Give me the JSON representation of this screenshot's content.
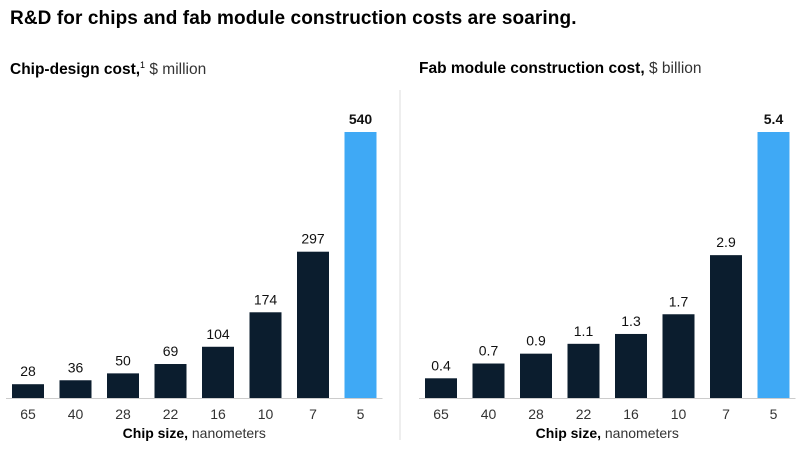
{
  "title": "R&D for chips and fab module construction costs are soaring.",
  "colors": {
    "bar": "#0b1d2e",
    "highlight": "#3fa9f5"
  },
  "chart_data": [
    {
      "type": "bar",
      "title": "Chip-design cost,",
      "footnote_marker": "1",
      "unit": "$ million",
      "xlabel_bold": "Chip size,",
      "xlabel_unit": "nanometers",
      "categories": [
        "65",
        "40",
        "28",
        "22",
        "16",
        "10",
        "7",
        "5"
      ],
      "values": [
        28,
        36,
        50,
        69,
        104,
        174,
        297,
        540
      ],
      "labels": [
        "28",
        "36",
        "50",
        "69",
        "104",
        "174",
        "297",
        "540"
      ],
      "highlight_index": 7,
      "ylim": [
        0,
        540
      ]
    },
    {
      "type": "bar",
      "title": "Fab module construction cost,",
      "unit": "$ billion",
      "xlabel_bold": "Chip size,",
      "xlabel_unit": "nanometers",
      "categories": [
        "65",
        "40",
        "28",
        "22",
        "16",
        "10",
        "7",
        "5"
      ],
      "values": [
        0.4,
        0.7,
        0.9,
        1.1,
        1.3,
        1.7,
        2.9,
        5.4
      ],
      "labels": [
        "0.4",
        "0.7",
        "0.9",
        "1.1",
        "1.3",
        "1.7",
        "2.9",
        "5.4"
      ],
      "highlight_index": 7,
      "ylim": [
        0,
        5.4
      ]
    }
  ]
}
